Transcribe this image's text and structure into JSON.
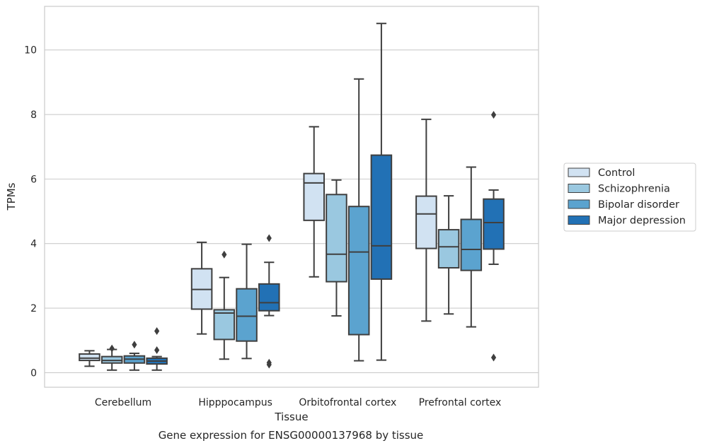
{
  "chart_data": {
    "type": "box",
    "xlabel": "Tissue",
    "ylabel": "TPMs",
    "caption": "Gene expression for ENSG00000137968 by tissue",
    "ylim": [
      -0.45,
      11.35
    ],
    "yticks": [
      0,
      2,
      4,
      6,
      8,
      10
    ],
    "grid": "horizontal",
    "legend_position": "right",
    "categories": [
      "Cerebellum",
      "Hipppocampus",
      "Orbitofrontal cortex",
      "Prefrontal cortex"
    ],
    "series": [
      {
        "name": "Control",
        "color": "#d1e2f2",
        "boxes": [
          {
            "whislo": 0.2,
            "q1": 0.38,
            "med": 0.45,
            "q3": 0.58,
            "whishi": 0.68,
            "fliers": []
          },
          {
            "whislo": 1.2,
            "q1": 1.97,
            "med": 2.58,
            "q3": 3.22,
            "whishi": 4.04,
            "fliers": []
          },
          {
            "whislo": 2.97,
            "q1": 4.72,
            "med": 5.88,
            "q3": 6.17,
            "whishi": 7.62,
            "fliers": []
          },
          {
            "whislo": 1.6,
            "q1": 3.85,
            "med": 4.92,
            "q3": 5.47,
            "whishi": 7.85,
            "fliers": []
          }
        ]
      },
      {
        "name": "Schizophrenia",
        "color": "#9ac8e0",
        "boxes": [
          {
            "whislo": 0.08,
            "q1": 0.3,
            "med": 0.38,
            "q3": 0.5,
            "whishi": 0.72,
            "fliers": [
              0.75
            ]
          },
          {
            "whislo": 0.42,
            "q1": 1.03,
            "med": 1.85,
            "q3": 1.95,
            "whishi": 2.95,
            "fliers": [
              3.66
            ]
          },
          {
            "whislo": 1.76,
            "q1": 2.82,
            "med": 3.67,
            "q3": 5.52,
            "whishi": 5.97,
            "fliers": []
          },
          {
            "whislo": 1.82,
            "q1": 3.25,
            "med": 3.9,
            "q3": 4.43,
            "whishi": 5.48,
            "fliers": []
          }
        ]
      },
      {
        "name": "Bipolar disorder",
        "color": "#5ba3cf",
        "boxes": [
          {
            "whislo": 0.08,
            "q1": 0.3,
            "med": 0.42,
            "q3": 0.52,
            "whishi": 0.6,
            "fliers": [
              0.87
            ]
          },
          {
            "whislo": 0.44,
            "q1": 0.98,
            "med": 1.75,
            "q3": 2.6,
            "whishi": 3.98,
            "fliers": []
          },
          {
            "whislo": 0.37,
            "q1": 1.18,
            "med": 3.74,
            "q3": 5.15,
            "whishi": 9.1,
            "fliers": []
          },
          {
            "whislo": 1.42,
            "q1": 3.17,
            "med": 3.82,
            "q3": 4.75,
            "whishi": 6.37,
            "fliers": []
          }
        ]
      },
      {
        "name": "Major depression",
        "color": "#2271b5",
        "boxes": [
          {
            "whislo": 0.08,
            "q1": 0.27,
            "med": 0.36,
            "q3": 0.45,
            "whishi": 0.5,
            "fliers": [
              0.7,
              1.29
            ]
          },
          {
            "whislo": 1.77,
            "q1": 1.92,
            "med": 2.17,
            "q3": 2.75,
            "whishi": 3.42,
            "fliers": [
              0.25,
              0.31,
              4.17
            ]
          },
          {
            "whislo": 0.39,
            "q1": 2.9,
            "med": 3.93,
            "q3": 6.74,
            "whishi": 10.82,
            "fliers": []
          },
          {
            "whislo": 3.36,
            "q1": 3.83,
            "med": 4.65,
            "q3": 5.38,
            "whishi": 5.66,
            "fliers": [
              0.47,
              7.99
            ]
          }
        ]
      }
    ]
  }
}
